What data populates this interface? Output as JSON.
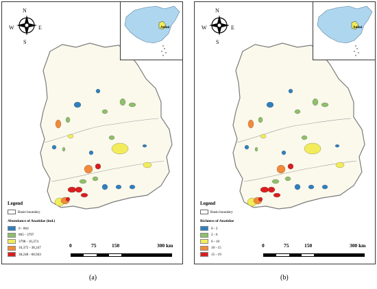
{
  "compass": {
    "n": "N",
    "s": "S",
    "w": "W",
    "e": "E"
  },
  "inset_label": "Anhui",
  "legend_title": "Legend",
  "boundary_label": "Basin boundary",
  "scale": {
    "labels": [
      "0",
      "75",
      "150",
      "300 km"
    ]
  },
  "colors": {
    "basin_fill": "#fbf9ec",
    "basin_stroke": "#7a7a7a",
    "china_fill": "#aed6ef",
    "class_1": "#2f7fbf",
    "class_2": "#8fbf6a",
    "class_3": "#f2ec5a",
    "class_4": "#f28a3a",
    "class_5": "#d91e1e"
  },
  "panels": [
    {
      "legend_subtitle": "Abundance of Anatidae (ind.)",
      "classes": [
        "0 - 804",
        "805 - 3797",
        "3798 - 16,374",
        "16,375 - 38,247",
        "38,248 - 60,943"
      ],
      "caption": "(a)"
    },
    {
      "legend_subtitle": "Richness of Anatidae",
      "classes": [
        "0 - 2",
        "2 - 6",
        "6 - 10",
        "10 - 15",
        "15 - 19"
      ],
      "caption": "(b)"
    }
  ]
}
